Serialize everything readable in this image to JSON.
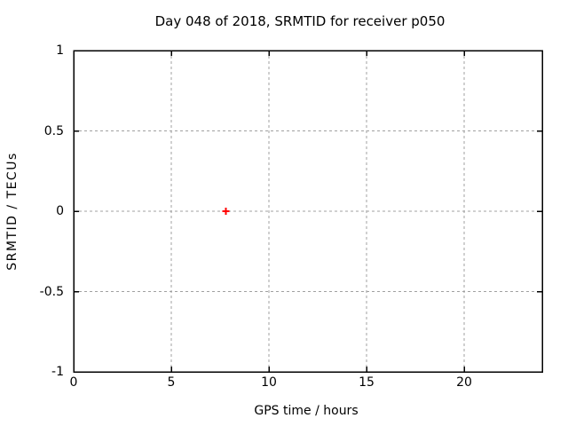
{
  "chart_data": {
    "type": "scatter",
    "title": "Day 048 of 2018, SRMTID for receiver p050",
    "xlabel": "GPS time / hours",
    "ylabel": "SRMTID / TECUs",
    "xlim": [
      0,
      24
    ],
    "ylim": [
      -1,
      1
    ],
    "xticks": {
      "values": [
        0,
        5,
        10,
        15,
        20
      ],
      "labels": [
        "0",
        "5",
        "10",
        "15",
        "20"
      ]
    },
    "yticks": {
      "values": [
        -1,
        -0.5,
        0,
        0.5,
        1
      ],
      "labels": [
        "-1",
        "-0.5",
        "0",
        "0.5",
        "1"
      ]
    },
    "grid": "major-dashed",
    "legend": "none",
    "series": [
      {
        "name": "SRMTID",
        "marker": "plus",
        "color": "#ff0000",
        "points": [
          {
            "x": 7.8,
            "y": 0.0
          }
        ]
      }
    ],
    "colors": {
      "background": "#ffffff",
      "border": "#000000",
      "grid": "#a0a0a0",
      "text": "#000000",
      "marker": "#ff0000"
    }
  }
}
